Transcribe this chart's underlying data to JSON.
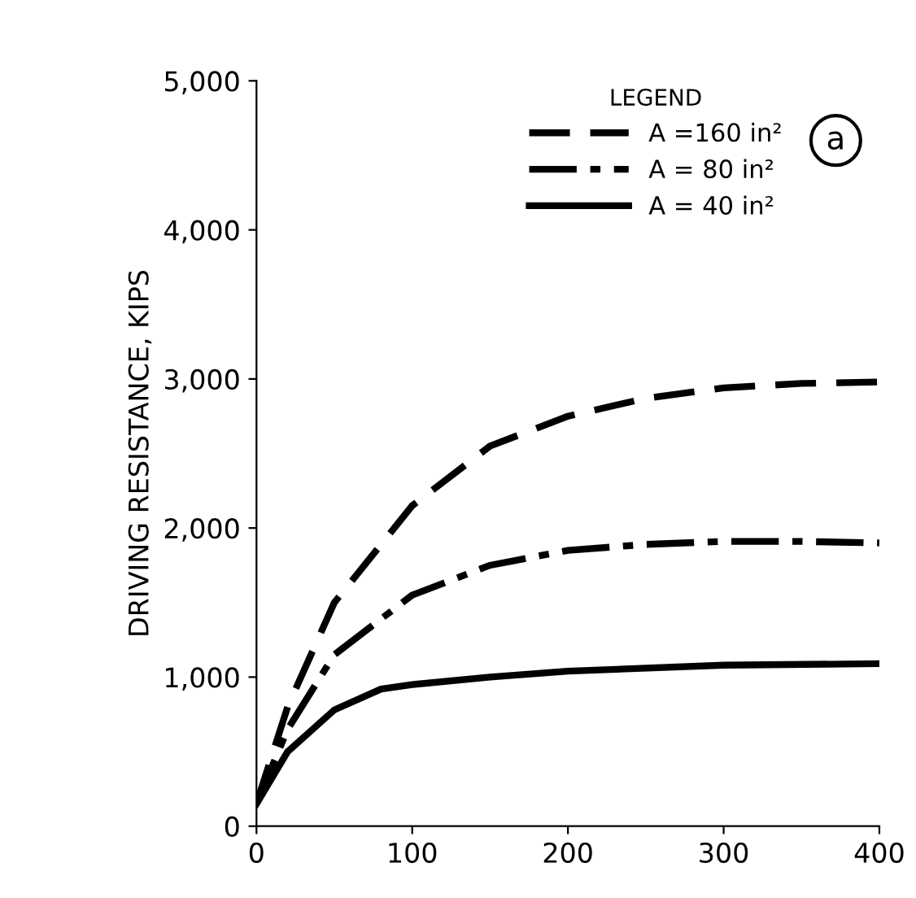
{
  "chart_data": {
    "type": "line",
    "ylabel": "DRIVING RESISTANCE, KIPS",
    "legend_title": "LEGEND",
    "legend": "top right",
    "grid": false,
    "marker": "none",
    "xlim": [
      0,
      400
    ],
    "xticks": [
      0,
      100,
      200,
      300,
      400
    ],
    "ylim": [
      0,
      5000
    ],
    "yticks": [
      0,
      {
        "value": 1000,
        "label": "1,000"
      },
      {
        "value": 2000,
        "label": "2,000"
      },
      {
        "value": 3000,
        "label": "3,000"
      },
      {
        "value": 4000,
        "label": "4,000"
      },
      {
        "value": 5000,
        "label": "5,000"
      }
    ],
    "annotations": [
      "a"
    ],
    "series": [
      {
        "name": "A =160 in²",
        "color": "#000000",
        "line_style": "dashed",
        "x": [
          0,
          20,
          50,
          100,
          150,
          200,
          250,
          300,
          350,
          400
        ],
        "values": [
          150,
          800,
          1500,
          2150,
          2550,
          2750,
          2870,
          2940,
          2970,
          2980
        ]
      },
      {
        "name": "A = 80 in²",
        "color": "#000000",
        "line_style": "dashdot",
        "x": [
          0,
          20,
          50,
          100,
          150,
          200,
          250,
          300,
          350,
          400
        ],
        "values": [
          150,
          650,
          1150,
          1550,
          1750,
          1850,
          1890,
          1910,
          1910,
          1900
        ]
      },
      {
        "name": "A = 40 in²",
        "color": "#000000",
        "line_style": "solid",
        "x": [
          0,
          20,
          50,
          80,
          100,
          150,
          200,
          300,
          400
        ],
        "values": [
          150,
          500,
          780,
          920,
          950,
          1000,
          1040,
          1080,
          1090
        ]
      }
    ]
  }
}
